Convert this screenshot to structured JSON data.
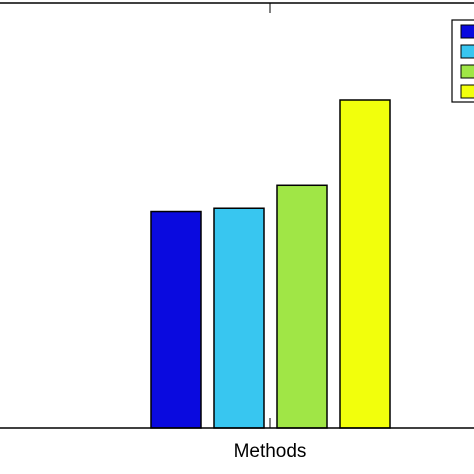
{
  "chart_data": {
    "type": "bar",
    "xlabel": "Methods",
    "categories": [
      ""
    ],
    "ylim": [
      0,
      1
    ],
    "grid": false,
    "legend_position": "top-right",
    "series": [
      {
        "values": [
          0.66
        ],
        "color": "#0a0adf"
      },
      {
        "values": [
          0.67
        ],
        "color": "#38c6f0"
      },
      {
        "values": [
          0.74
        ],
        "color": "#a0e646"
      },
      {
        "values": [
          1.0
        ],
        "color": "#f2ff0c"
      }
    ]
  }
}
